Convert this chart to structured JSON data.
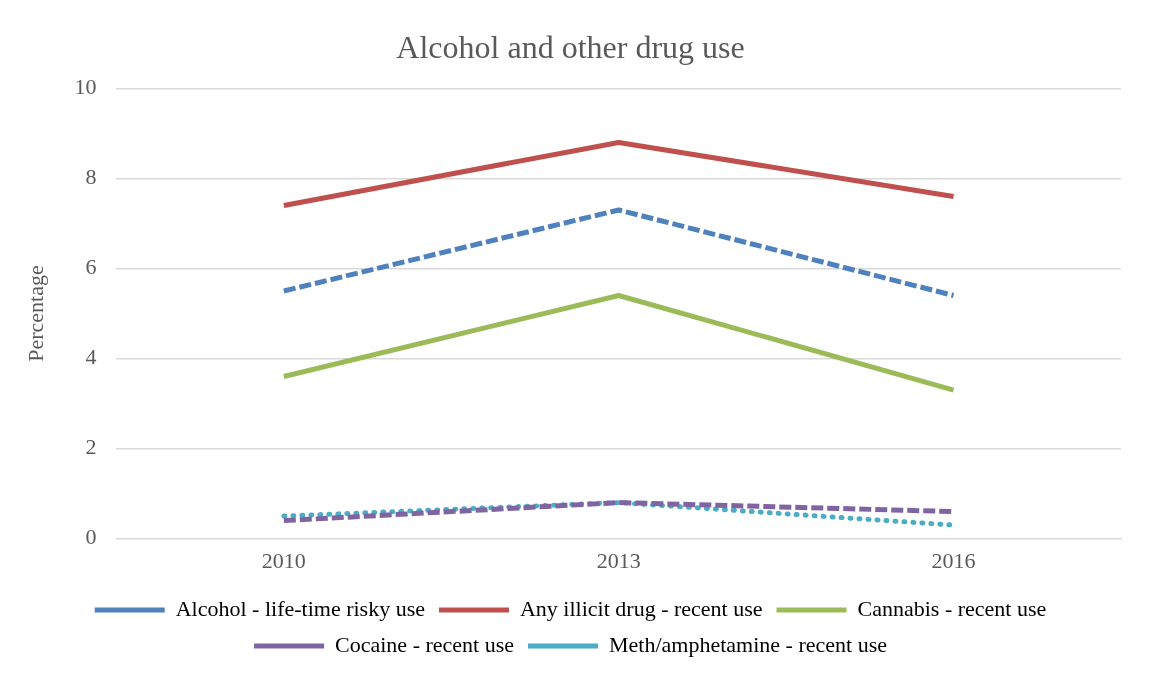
{
  "chart_data": {
    "type": "line",
    "title": "Alcohol and other drug use",
    "ylabel": "Percentage",
    "categories": [
      "2010",
      "2013",
      "2016"
    ],
    "series": [
      {
        "name": "Alcohol - life-time risky use",
        "color": "#4f81bd",
        "line_style": "dashed",
        "values": [
          5.5,
          7.3,
          5.4
        ]
      },
      {
        "name": "Any illicit drug - recent use",
        "color": "#c0504d",
        "line_style": "solid",
        "values": [
          7.4,
          8.8,
          7.6
        ]
      },
      {
        "name": "Cannabis - recent use",
        "color": "#9bbb59",
        "line_style": "solid",
        "values": [
          3.6,
          5.4,
          3.3
        ]
      },
      {
        "name": "Cocaine - recent use",
        "color": "#8064a2",
        "line_style": "dashed",
        "values": [
          0.4,
          0.8,
          0.6
        ]
      },
      {
        "name": "Meth/amphetamine - recent use",
        "color": "#4bacc6",
        "line_style": "dotted",
        "values": [
          0.5,
          0.8,
          0.3
        ]
      }
    ],
    "ylim": [
      0,
      10
    ],
    "yticks": [
      0,
      2,
      4,
      6,
      8,
      10
    ],
    "grid": "y",
    "legend": "bottom",
    "marker": "none"
  }
}
